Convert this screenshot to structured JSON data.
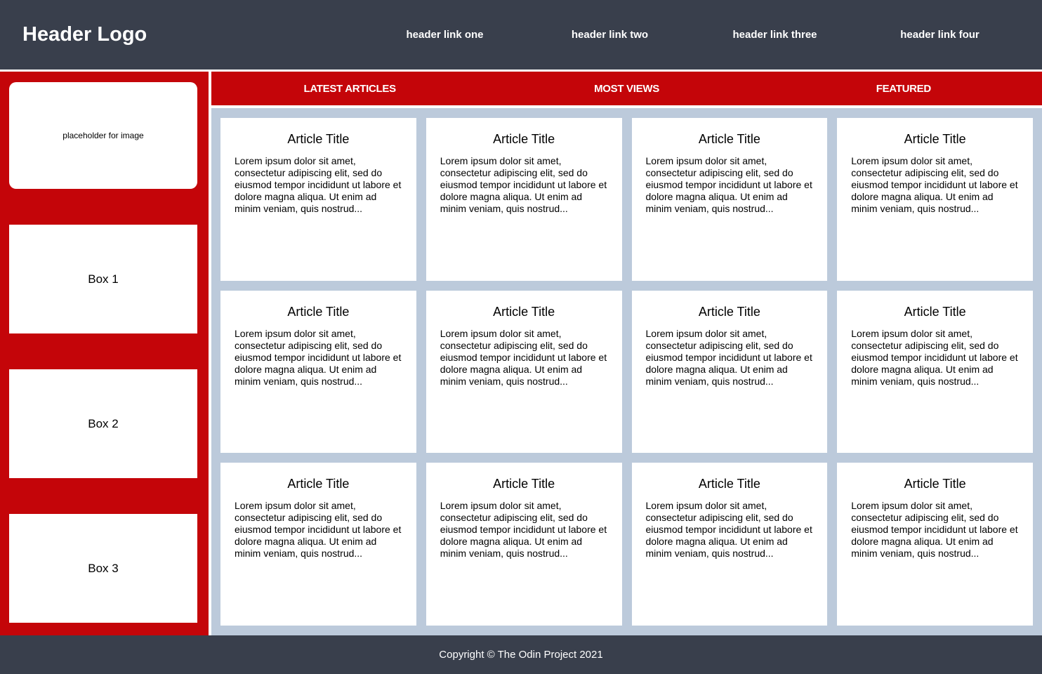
{
  "header": {
    "logo": "Header Logo",
    "links": [
      "header link one",
      "header link two",
      "header link three",
      "header link four"
    ]
  },
  "sidebar": {
    "placeholder_label": "placeholder for image",
    "boxes": [
      "Box 1",
      "Box 2",
      "Box 3"
    ]
  },
  "red_nav": {
    "items": [
      "LATEST ARTICLES",
      "MOST VIEWS",
      "FEATURED"
    ]
  },
  "articles": {
    "count": 12,
    "title": "Article Title",
    "body": "Lorem ipsum dolor sit amet, consectetur adipiscing elit, sed do eiusmod tempor incididunt ut labore et dolore magna aliqua. Ut enim ad minim veniam, quis nostrud..."
  },
  "footer": {
    "copyright": "Copyright © The Odin Project 2021"
  },
  "colors": {
    "header_bg": "#393f4c",
    "accent_red": "#c40509",
    "content_bg": "#bccadb",
    "card_bg": "#ffffff"
  }
}
